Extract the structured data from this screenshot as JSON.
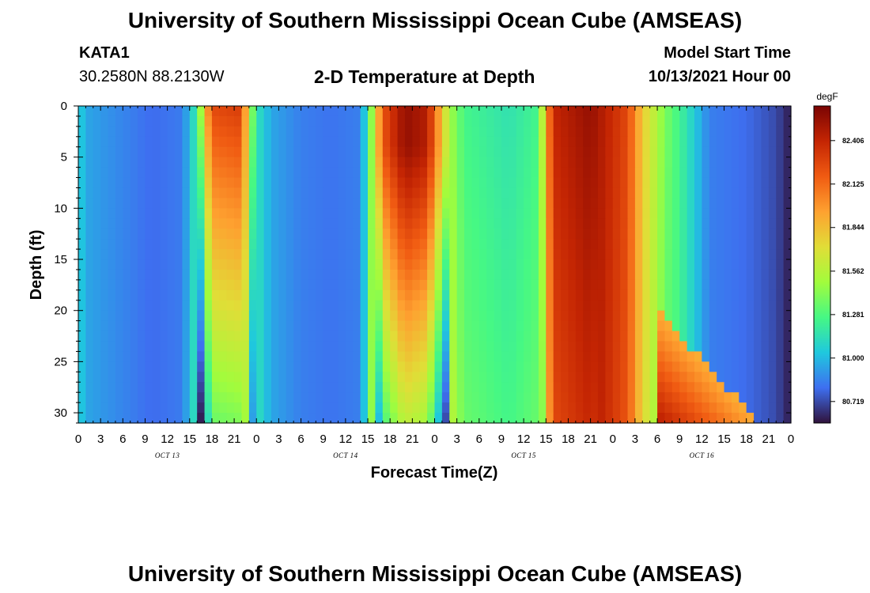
{
  "header": {
    "title": "University of Southern Mississippi Ocean Cube (AMSEAS)",
    "station": "KATA1",
    "location": "30.2580N  88.2130W",
    "subtitle": "2-D Temperature at Depth",
    "start_label": "Model Start Time",
    "start_value": "10/13/2021 Hour 00"
  },
  "footer": {
    "title": "University of Southern Mississippi Ocean Cube (AMSEAS)"
  },
  "chart_data": {
    "type": "heatmap",
    "title": "2-D Temperature at Depth",
    "xlabel": "Forecast Time(Z)",
    "ylabel": "Depth (ft)",
    "x_range_hours": [
      0,
      96
    ],
    "ylim": [
      0,
      31
    ],
    "x_tick_hours": [
      0,
      3,
      6,
      9,
      12,
      15,
      18,
      21,
      24,
      27,
      30,
      33,
      36,
      39,
      42,
      45,
      48,
      51,
      54,
      57,
      60,
      63,
      66,
      69,
      72,
      75,
      78,
      81,
      84,
      87,
      90,
      93,
      96
    ],
    "x_tick_labels": [
      "0",
      "3",
      "6",
      "9",
      "12",
      "15",
      "18",
      "21",
      "0",
      "3",
      "6",
      "9",
      "12",
      "15",
      "18",
      "21",
      "0",
      "3",
      "6",
      "9",
      "12",
      "15",
      "18",
      "21",
      "0",
      "3",
      "6",
      "9",
      "12",
      "15",
      "18",
      "21",
      "0"
    ],
    "date_labels": [
      {
        "hour": 12,
        "text": "OCT 13"
      },
      {
        "hour": 36,
        "text": "OCT 14"
      },
      {
        "hour": 60,
        "text": "OCT 15"
      },
      {
        "hour": 84,
        "text": "OCT 16"
      }
    ],
    "y_ticks": [
      0,
      5,
      10,
      15,
      20,
      25,
      30
    ],
    "colorbar": {
      "unit": "degF",
      "min": 80.58,
      "max": 82.63,
      "labels": [
        "82.406",
        "82.125",
        "81.844",
        "81.562",
        "81.281",
        "81.000",
        "80.719"
      ],
      "colors": [
        "#30123b",
        "#3e6ff0",
        "#1fc8de",
        "#46f884",
        "#a2fc3c",
        "#e1dd37",
        "#fea130",
        "#f05b12",
        "#c42503",
        "#7a0403"
      ]
    },
    "surface_profile_degF": [
      {
        "hour": 0,
        "value": 81.1
      },
      {
        "hour": 1,
        "value": 80.95
      },
      {
        "hour": 5,
        "value": 80.88
      },
      {
        "hour": 10,
        "value": 80.8
      },
      {
        "hour": 14,
        "value": 80.84
      },
      {
        "hour": 16,
        "value": 81.2
      },
      {
        "hour": 17,
        "value": 81.8
      },
      {
        "hour": 18,
        "value": 82.25
      },
      {
        "hour": 22,
        "value": 82.3
      },
      {
        "hour": 23,
        "value": 81.6
      },
      {
        "hour": 24,
        "value": 81.15
      },
      {
        "hour": 26,
        "value": 80.95
      },
      {
        "hour": 30,
        "value": 80.85
      },
      {
        "hour": 34,
        "value": 80.82
      },
      {
        "hour": 38,
        "value": 80.85
      },
      {
        "hour": 39,
        "value": 81.2
      },
      {
        "hour": 41,
        "value": 82.2
      },
      {
        "hour": 44,
        "value": 82.55
      },
      {
        "hour": 47,
        "value": 82.45
      },
      {
        "hour": 50,
        "value": 81.5
      },
      {
        "hour": 52,
        "value": 81.25
      },
      {
        "hour": 58,
        "value": 81.15
      },
      {
        "hour": 62,
        "value": 81.25
      },
      {
        "hour": 63,
        "value": 81.9
      },
      {
        "hour": 64,
        "value": 82.4
      },
      {
        "hour": 69,
        "value": 82.55
      },
      {
        "hour": 74,
        "value": 82.25
      },
      {
        "hour": 76,
        "value": 81.8
      },
      {
        "hour": 79,
        "value": 81.4
      },
      {
        "hour": 82,
        "value": 81.15
      },
      {
        "hour": 85,
        "value": 80.85
      },
      {
        "hour": 90,
        "value": 80.8
      },
      {
        "hour": 94,
        "value": 80.72
      },
      {
        "hour": 96,
        "value": 80.6
      }
    ],
    "warm_front_depth_ft": [
      {
        "hour": 15.5,
        "depth": 0
      },
      {
        "hour": 16.5,
        "depth": 5
      },
      {
        "hour": 17.5,
        "depth": 31
      },
      {
        "hour": 39.5,
        "depth": 0
      },
      {
        "hour": 41,
        "depth": 5
      },
      {
        "hour": 43,
        "depth": 10
      },
      {
        "hour": 44,
        "depth": 31
      },
      {
        "hour": 63,
        "depth": 0
      },
      {
        "hour": 65,
        "depth": 10
      },
      {
        "hour": 66,
        "depth": 31
      }
    ]
  }
}
